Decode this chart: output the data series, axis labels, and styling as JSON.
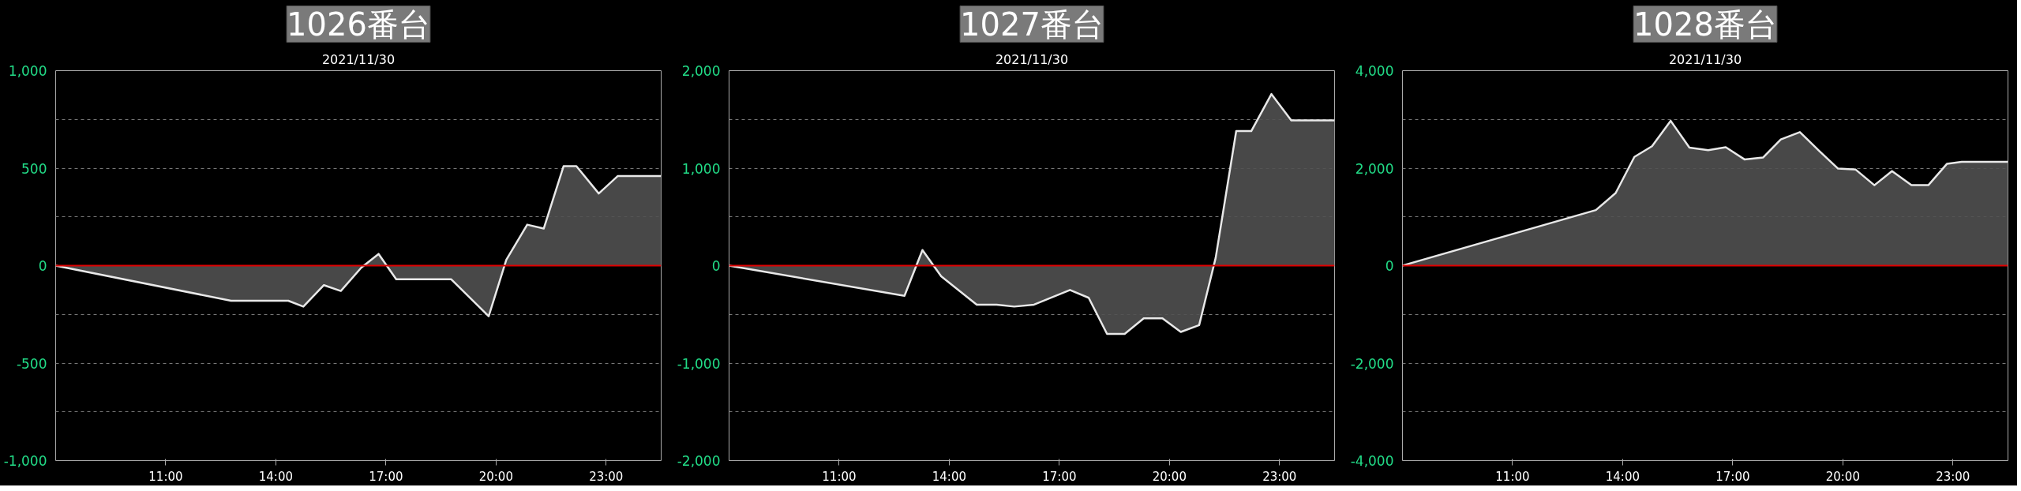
{
  "chart_data": [
    {
      "type": "area",
      "title": "1026番台",
      "subtitle": "2021/11/30",
      "grid": "y",
      "line_style": "solid",
      "marker": "none",
      "xlim": [
        8,
        24.5
      ],
      "xticks": [
        {
          "value": 11,
          "label": "11:00"
        },
        {
          "value": 14,
          "label": "14:00"
        },
        {
          "value": 17,
          "label": "17:00"
        },
        {
          "value": 20,
          "label": "20:00"
        },
        {
          "value": 23,
          "label": "23:00"
        }
      ],
      "ylim": [
        -1000,
        1000
      ],
      "yticks": [
        {
          "value": -1000,
          "label": "-1,000"
        },
        {
          "value": -750,
          "label": null
        },
        {
          "value": -500,
          "label": "-500"
        },
        {
          "value": -250,
          "label": null
        },
        0,
        {
          "value": 250,
          "label": null
        },
        500,
        {
          "value": 750,
          "label": null
        },
        {
          "value": 1000,
          "label": "1,000"
        }
      ],
      "ref_lines": [
        {
          "axis": "y",
          "value": 0,
          "color": "#e00000"
        }
      ],
      "series": [
        {
          "color": "#e8e8e8",
          "x": [
            8,
            12.78,
            14.34,
            14.75,
            15.31,
            15.77,
            16.33,
            16.8,
            17.28,
            18.78,
            19.8,
            20.28,
            20.85,
            21.3,
            21.84,
            22.19,
            22.8,
            23.32,
            24.5
          ],
          "values": [
            0,
            -180,
            -180,
            -210,
            -100,
            -130,
            -10,
            60,
            -70,
            -70,
            -260,
            30,
            210,
            190,
            510,
            510,
            370,
            460,
            460
          ]
        }
      ]
    },
    {
      "type": "area",
      "title": "1027番台",
      "subtitle": "2021/11/30",
      "grid": "y",
      "line_style": "solid",
      "marker": "none",
      "xlim": [
        8,
        24.5
      ],
      "xticks": [
        {
          "value": 11,
          "label": "11:00"
        },
        {
          "value": 14,
          "label": "14:00"
        },
        {
          "value": 17,
          "label": "17:00"
        },
        {
          "value": 20,
          "label": "20:00"
        },
        {
          "value": 23,
          "label": "23:00"
        }
      ],
      "ylim": [
        -2000,
        2000
      ],
      "yticks": [
        {
          "value": -2000,
          "label": "-2,000"
        },
        {
          "value": -1500,
          "label": null
        },
        {
          "value": -1000,
          "label": "-1,000"
        },
        {
          "value": -500,
          "label": null
        },
        0,
        {
          "value": 500,
          "label": null
        },
        {
          "value": 1000,
          "label": "1,000"
        },
        {
          "value": 1500,
          "label": null
        },
        {
          "value": 2000,
          "label": "2,000"
        }
      ],
      "ref_lines": [
        {
          "axis": "y",
          "value": 0,
          "color": "#e00000"
        }
      ],
      "series": [
        {
          "color": "#e8e8e8",
          "x": [
            8,
            12.78,
            13.27,
            13.78,
            14.75,
            15.29,
            15.77,
            16.31,
            17.29,
            17.8,
            18.3,
            18.78,
            19.3,
            19.81,
            20.31,
            20.81,
            21.26,
            21.82,
            22.23,
            22.78,
            23.32,
            24.5
          ],
          "values": [
            0,
            -310,
            160,
            -110,
            -400,
            -400,
            -420,
            -400,
            -250,
            -330,
            -700,
            -700,
            -540,
            -540,
            -680,
            -610,
            80,
            1380,
            1380,
            1760,
            1490,
            1490
          ]
        }
      ]
    },
    {
      "type": "area",
      "title": "1028番台",
      "subtitle": "2021/11/30",
      "grid": "y",
      "line_style": "solid",
      "marker": "none",
      "xlim": [
        8,
        24.5
      ],
      "xticks": [
        {
          "value": 11,
          "label": "11:00"
        },
        {
          "value": 14,
          "label": "14:00"
        },
        {
          "value": 17,
          "label": "17:00"
        },
        {
          "value": 20,
          "label": "20:00"
        },
        {
          "value": 23,
          "label": "23:00"
        }
      ],
      "ylim": [
        -4000,
        4000
      ],
      "yticks": [
        {
          "value": -4000,
          "label": "-4,000"
        },
        {
          "value": -3000,
          "label": null
        },
        {
          "value": -2000,
          "label": "-2,000"
        },
        {
          "value": -1000,
          "label": null
        },
        0,
        {
          "value": 1000,
          "label": null
        },
        {
          "value": 2000,
          "label": "2,000"
        },
        {
          "value": 3000,
          "label": null
        },
        {
          "value": 4000,
          "label": "4,000"
        }
      ],
      "ref_lines": [
        {
          "axis": "y",
          "value": 0,
          "color": "#e00000"
        }
      ],
      "series": [
        {
          "color": "#e8e8e8",
          "x": [
            8,
            13.27,
            13.81,
            14.32,
            14.8,
            15.31,
            15.82,
            16.33,
            16.81,
            17.32,
            17.83,
            18.31,
            18.83,
            19.36,
            19.87,
            20.35,
            20.86,
            21.34,
            21.87,
            22.33,
            22.84,
            23.24,
            24.5
          ],
          "values": [
            0,
            1140,
            1490,
            2230,
            2450,
            2970,
            2420,
            2370,
            2430,
            2180,
            2220,
            2590,
            2740,
            2350,
            1990,
            1970,
            1650,
            1940,
            1650,
            1650,
            2090,
            2130,
            2130
          ]
        }
      ]
    }
  ]
}
